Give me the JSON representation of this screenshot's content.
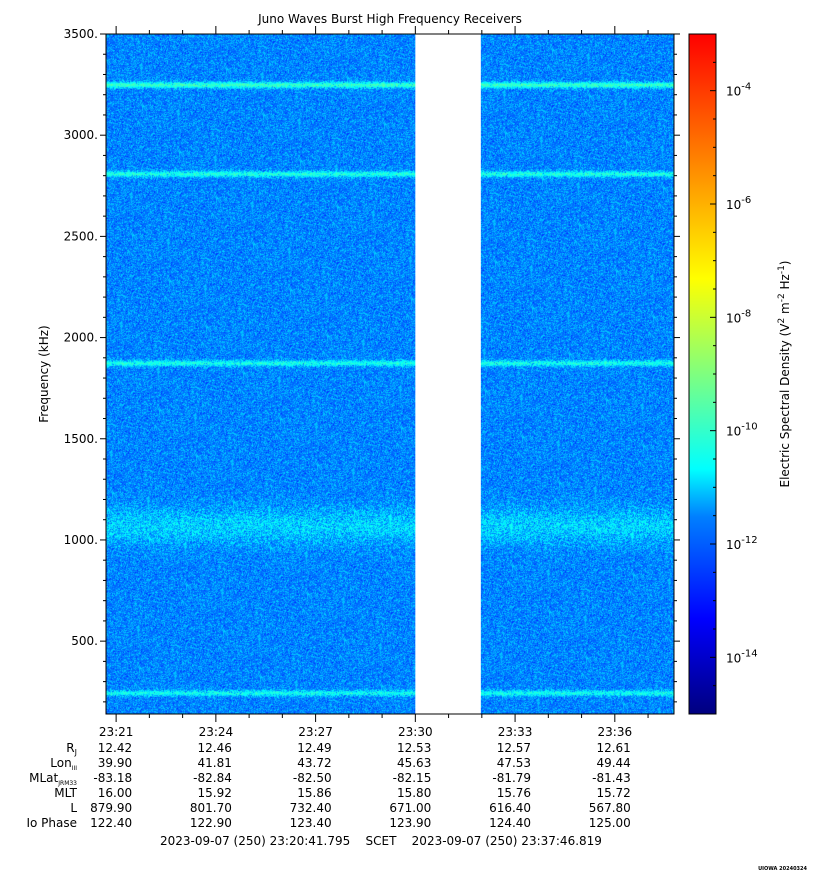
{
  "chart_data": {
    "type": "heatmap",
    "title": "Juno Waves Burst High Frequency Receivers",
    "ylabel": "Frequency (kHz)",
    "ylim": [
      140,
      3500
    ],
    "y_ticks": [
      "3500.",
      "3000.",
      "2500.",
      "2000.",
      "1500.",
      "1000.",
      "500."
    ],
    "y_tick_values": [
      3500,
      3000,
      2500,
      2000,
      1500,
      1000,
      500
    ],
    "x_ticks": [
      "23:21",
      "23:24",
      "23:27",
      "23:30",
      "23:33",
      "23:36"
    ],
    "x_tick_values_min": [
      21,
      24,
      27,
      30,
      33,
      36
    ],
    "xlim_min": [
      20.6955,
      37.7803
    ],
    "data_gap_min": [
      30.0,
      31.97
    ],
    "background_log_density": -11.5,
    "emission_bands_khz": [
      {
        "freq": 3250,
        "log_density": -9.9
      },
      {
        "freq": 2810,
        "log_density": -10.2
      },
      {
        "freq": 1875,
        "log_density": -10.3
      },
      {
        "freq": 1070,
        "log_density": -10.9
      },
      {
        "freq": 245,
        "log_density": -10.4
      }
    ],
    "colorbar": {
      "label": "Electric Spectral Density",
      "ticks": [
        {
          "exp": "-4",
          "value": -4
        },
        {
          "exp": "-6",
          "value": -6
        },
        {
          "exp": "-8",
          "value": -8
        },
        {
          "exp": "-10",
          "value": -10
        },
        {
          "exp": "-12",
          "value": -12
        },
        {
          "exp": "-14",
          "value": -14
        }
      ],
      "range": [
        -15,
        -3
      ],
      "colors": [
        "#00007f",
        "#0000ff",
        "#007fff",
        "#00ffff",
        "#7fff7f",
        "#ffff00",
        "#ff7f00",
        "#ff0000"
      ]
    },
    "ephemeris": {
      "rows": [
        {
          "label": "R",
          "sub": "J",
          "values": [
            "12.42",
            "12.46",
            "12.49",
            "12.53",
            "12.57",
            "12.61"
          ]
        },
        {
          "label": "Lon",
          "sub": "III",
          "values": [
            "39.90",
            "41.81",
            "43.72",
            "45.63",
            "47.53",
            "49.44"
          ]
        },
        {
          "label": "MLat",
          "sub": "JRM33",
          "values": [
            "-83.18",
            "-82.84",
            "-82.50",
            "-82.15",
            "-81.79",
            "-81.43"
          ]
        },
        {
          "label": "MLT",
          "sub": "",
          "values": [
            "16.00",
            "15.92",
            "15.86",
            "15.80",
            "15.76",
            "15.72"
          ]
        },
        {
          "label": "L",
          "sub": "",
          "values": [
            "879.90",
            "801.70",
            "732.40",
            "671.00",
            "616.40",
            "567.80"
          ]
        },
        {
          "label": "Io Phase",
          "sub": "",
          "values": [
            "122.40",
            "122.90",
            "123.40",
            "123.90",
            "124.40",
            "125.00"
          ]
        }
      ]
    },
    "footer": "2023-09-07 (250) 23:20:41.795    SCET    2023-09-07 (250) 23:37:46.819"
  },
  "stamp": "UIOWA 20240324"
}
